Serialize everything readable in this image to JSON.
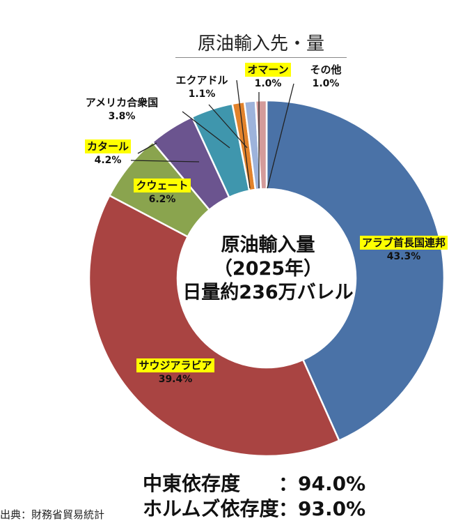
{
  "header": {
    "title": "原油輸入先・量"
  },
  "chart_data": {
    "type": "pie",
    "donut": true,
    "start_angle_deg": 0,
    "direction": "clockwise",
    "unit": "%",
    "slices": [
      {
        "name": "アラブ首長国連邦",
        "value": 43.3,
        "label": "43.3%",
        "color": "#4a72a7",
        "highlight": true
      },
      {
        "name": "サウジアラビア",
        "value": 39.4,
        "label": "39.4%",
        "color": "#a94442",
        "highlight": true
      },
      {
        "name": "クウェート",
        "value": 6.2,
        "label": "6.2%",
        "color": "#8aa44e",
        "highlight": true
      },
      {
        "name": "カタール",
        "value": 4.2,
        "label": "4.2%",
        "color": "#6b548f",
        "highlight": true
      },
      {
        "name": "アメリカ合衆国",
        "value": 3.8,
        "label": "3.8%",
        "color": "#3f96ad",
        "highlight": false
      },
      {
        "name": "エクアドル",
        "value": 1.1,
        "label": "1.1%",
        "color": "#e2832c",
        "highlight": false
      },
      {
        "name": "オマーン",
        "value": 1.0,
        "label": "1.0%",
        "color": "#9db3db",
        "highlight": true
      },
      {
        "name": "その他",
        "value": 1.0,
        "label": "1.0%",
        "color": "#d49b9a",
        "highlight": false
      }
    ]
  },
  "center": {
    "line1": "原油輸入量",
    "line2": "（2025年）",
    "line3": "日量約236万バレル"
  },
  "stats": [
    {
      "label": "中東依存度",
      "value": "：94.0%"
    },
    {
      "label": "ホルムズ依存度",
      "value": "：93.0%"
    }
  ],
  "source": "出典：財務省貿易統計"
}
